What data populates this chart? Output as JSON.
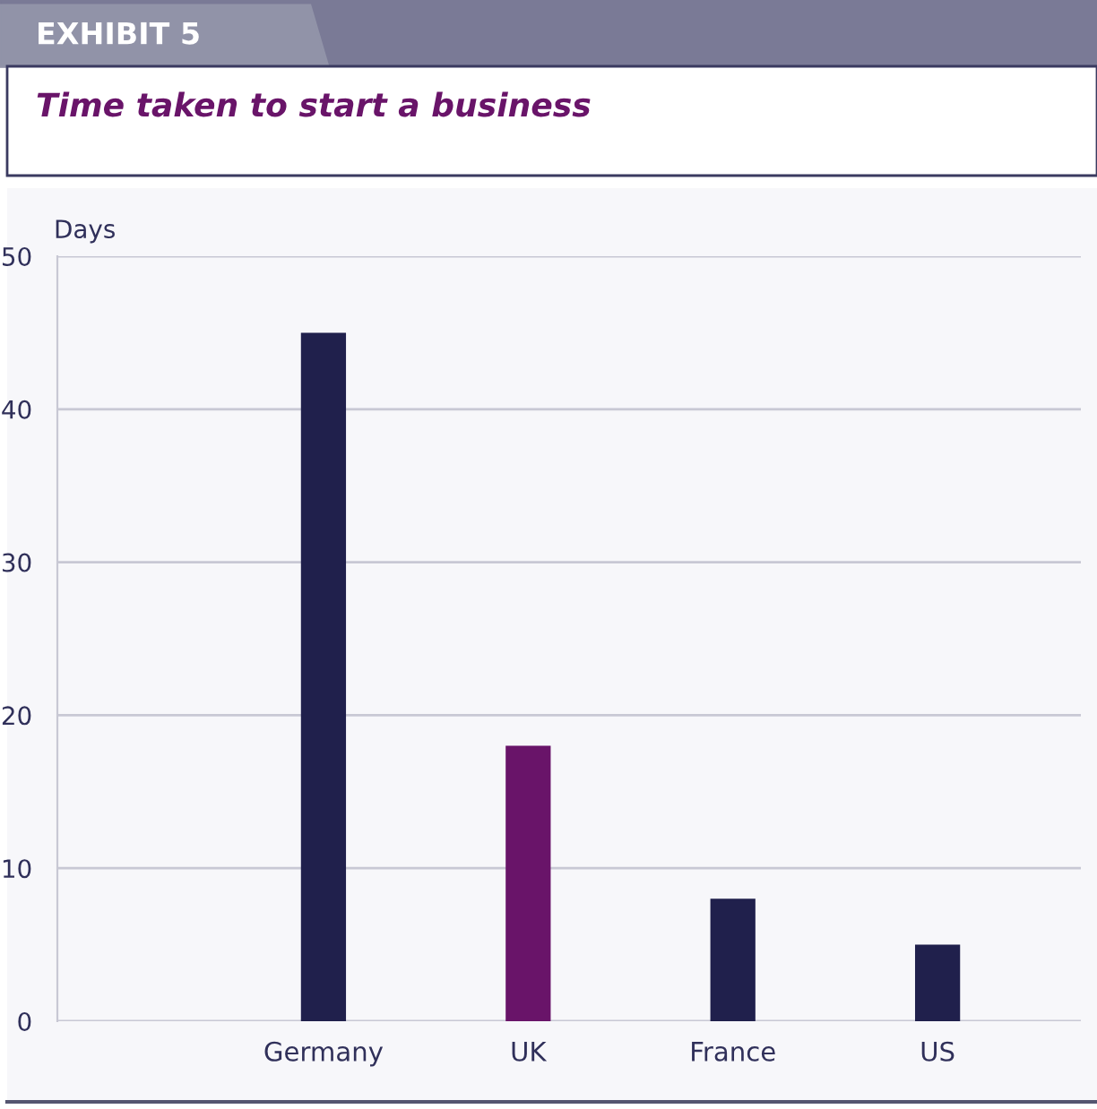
{
  "chart_data": {
    "type": "bar",
    "title": "Time taken to start a business",
    "ylabel": "Days",
    "annotations": [
      "EXHIBIT 5"
    ],
    "categories": [
      "Germany",
      "UK",
      "France",
      "US"
    ],
    "values": [
      45,
      18,
      8,
      5
    ],
    "colors": [
      "#20204c",
      "#691469",
      "#20204c",
      "#20204c"
    ],
    "ylim": [
      0,
      50
    ],
    "yticks": [
      0,
      10,
      20,
      30,
      40,
      50
    ],
    "grid": "y"
  }
}
